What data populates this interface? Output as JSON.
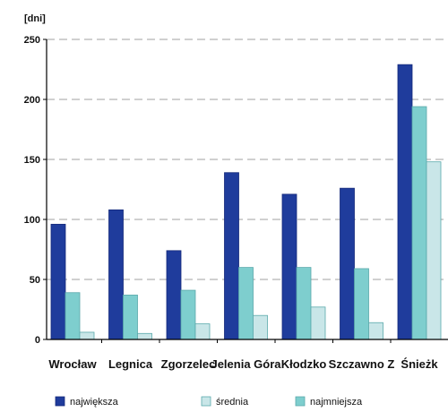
{
  "chart_data": {
    "type": "bar",
    "unit_label": "[dni]",
    "categories": [
      "Wrocław",
      "Legnica",
      "Zgorzelec",
      "Jelenia Góra",
      "Kłodzko",
      "Szczawno Z",
      "Śnieżk"
    ],
    "series": [
      {
        "name": "największa",
        "values": [
          96,
          108,
          74,
          139,
          121,
          126,
          229
        ],
        "color": "#1f3c9c"
      },
      {
        "name": "średnia",
        "values": [
          6,
          5,
          13,
          20,
          27,
          14,
          148
        ],
        "color": "#c9e6e8"
      },
      {
        "name": "najmniejsza",
        "values": [
          39,
          37,
          41,
          60,
          60,
          59,
          194
        ],
        "color": "#7ecece"
      }
    ],
    "bar_order": [
      "największa",
      "najmniejsza",
      "średnia"
    ],
    "ylim": [
      0,
      250
    ],
    "yticks": [
      0,
      50,
      100,
      150,
      200,
      250
    ],
    "grid": true,
    "legend_position": "bottom"
  }
}
